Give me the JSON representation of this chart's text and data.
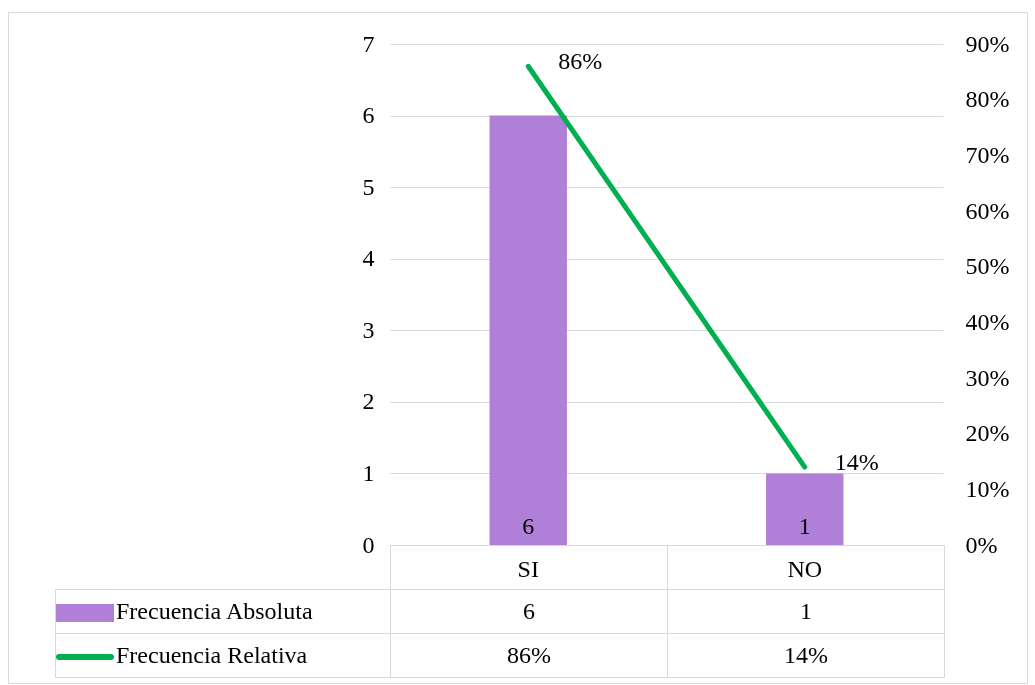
{
  "chart_data": {
    "type": "bar",
    "categories": [
      "SI",
      "NO"
    ],
    "series": [
      {
        "name": "Frecuencia Absoluta",
        "color": "#b07fd8",
        "values": [
          6,
          1
        ],
        "value_labels": [
          "6",
          "1"
        ]
      },
      {
        "name": "Frecuencia Relativa",
        "type": "line",
        "axis": "y2",
        "color": "#00b050",
        "values": [
          86,
          14
        ],
        "value_labels": [
          "86%",
          "14%"
        ]
      }
    ],
    "ylim": [
      0,
      7
    ],
    "yticks": [
      0,
      1,
      2,
      3,
      4,
      5,
      6,
      7
    ],
    "y2lim": [
      0,
      90
    ],
    "y2ticks": [
      {
        "value": 0,
        "label": "0%"
      },
      {
        "value": 10,
        "label": "10%"
      },
      {
        "value": 20,
        "label": "20%"
      },
      {
        "value": 30,
        "label": "30%"
      },
      {
        "value": 40,
        "label": "40%"
      },
      {
        "value": 50,
        "label": "50%"
      },
      {
        "value": 60,
        "label": "60%"
      },
      {
        "value": 70,
        "label": "70%"
      },
      {
        "value": 80,
        "label": "80%"
      },
      {
        "value": 90,
        "label": "90%"
      }
    ],
    "grid": "y",
    "legend": "bottom",
    "marker": "none",
    "line_style": "solid"
  }
}
